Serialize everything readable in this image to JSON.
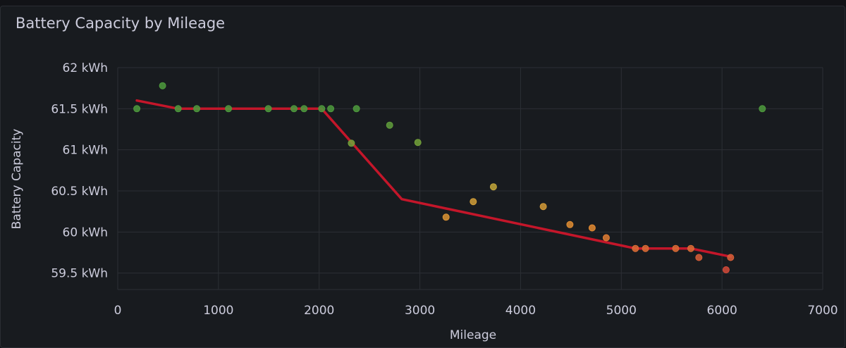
{
  "panel": {
    "title": "Battery Capacity by Mileage"
  },
  "chart_data": {
    "type": "scatter",
    "title": "Battery Capacity by Mileage",
    "xlabel": "Mileage",
    "ylabel": "Battery Capacity",
    "xlim": [
      0,
      7000
    ],
    "ylim": [
      59.3,
      62
    ],
    "x_ticks": [
      0,
      1000,
      2000,
      3000,
      4000,
      5000,
      6000,
      7000
    ],
    "x_tick_labels": [
      "0",
      "1000",
      "2000",
      "3000",
      "4000",
      "5000",
      "6000",
      "7000"
    ],
    "y_ticks": [
      59.5,
      60,
      60.5,
      61,
      61.5,
      62
    ],
    "y_tick_labels": [
      "59.5 kWh",
      "60 kWh",
      "60.5 kWh",
      "61 kWh",
      "61.5 kWh",
      "62 kWh"
    ],
    "grid": true,
    "series": [
      {
        "kind": "points",
        "color_scale": [
          "#d44a3a",
          "#e58a32",
          "#c8a63a",
          "#7aa23a",
          "#4e9a3d"
        ],
        "points": [
          {
            "x": 190,
            "y": 61.5
          },
          {
            "x": 445,
            "y": 61.78
          },
          {
            "x": 600,
            "y": 61.5
          },
          {
            "x": 785,
            "y": 61.5
          },
          {
            "x": 1100,
            "y": 61.5
          },
          {
            "x": 1495,
            "y": 61.5
          },
          {
            "x": 1750,
            "y": 61.5
          },
          {
            "x": 1850,
            "y": 61.5
          },
          {
            "x": 2025,
            "y": 61.5
          },
          {
            "x": 2115,
            "y": 61.5
          },
          {
            "x": 2370,
            "y": 61.5
          },
          {
            "x": 2320,
            "y": 61.08
          },
          {
            "x": 2700,
            "y": 61.3
          },
          {
            "x": 2980,
            "y": 61.09
          },
          {
            "x": 3260,
            "y": 60.18
          },
          {
            "x": 3530,
            "y": 60.37
          },
          {
            "x": 3730,
            "y": 60.55
          },
          {
            "x": 4225,
            "y": 60.31
          },
          {
            "x": 4490,
            "y": 60.09
          },
          {
            "x": 4710,
            "y": 60.05
          },
          {
            "x": 4850,
            "y": 59.93
          },
          {
            "x": 5140,
            "y": 59.8
          },
          {
            "x": 5240,
            "y": 59.8
          },
          {
            "x": 5540,
            "y": 59.8
          },
          {
            "x": 5690,
            "y": 59.8
          },
          {
            "x": 5770,
            "y": 59.69
          },
          {
            "x": 6040,
            "y": 59.54
          },
          {
            "x": 6085,
            "y": 59.69
          },
          {
            "x": 6400,
            "y": 61.5
          }
        ]
      },
      {
        "kind": "line",
        "color": "#c4162a",
        "points": [
          {
            "x": 190,
            "y": 61.6
          },
          {
            "x": 600,
            "y": 61.5
          },
          {
            "x": 2025,
            "y": 61.5
          },
          {
            "x": 2820,
            "y": 60.4
          },
          {
            "x": 5140,
            "y": 59.8
          },
          {
            "x": 5690,
            "y": 59.8
          },
          {
            "x": 6085,
            "y": 59.7
          }
        ]
      }
    ]
  }
}
